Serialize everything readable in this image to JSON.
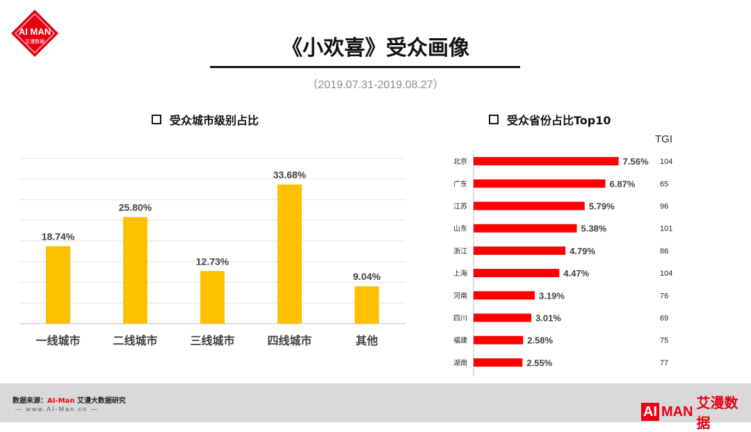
{
  "header": {
    "logo_text": "AI MAN",
    "logo_sub": "艾漫数据",
    "title": "《小欢喜》受众画像",
    "date_range": "（2019.07.31-2019.08.27）"
  },
  "colors": {
    "bar_left": "#ffc000",
    "bar_right": "#ff0000",
    "brand": "#e60012"
  },
  "chart_data": [
    {
      "type": "bar",
      "title": "受众城市级别占比",
      "categories": [
        "一线城市",
        "二线城市",
        "三线城市",
        "四线城市",
        "其他"
      ],
      "values": [
        18.74,
        25.8,
        12.73,
        33.68,
        9.04
      ],
      "value_labels": [
        "18.74%",
        "25.80%",
        "12.73%",
        "33.68%",
        "9.04%"
      ],
      "ylim": [
        0,
        40
      ],
      "grid": true,
      "unit": "%"
    },
    {
      "type": "bar",
      "orientation": "horizontal",
      "title": "受众省份占比Top10",
      "categories": [
        "北京",
        "广东",
        "江苏",
        "山东",
        "浙江",
        "上海",
        "河南",
        "四川",
        "福建",
        "湖南"
      ],
      "values": [
        7.56,
        6.87,
        5.79,
        5.38,
        4.79,
        4.47,
        3.19,
        3.01,
        2.58,
        2.55
      ],
      "value_labels": [
        "7.56%",
        "6.87%",
        "5.79%",
        "5.38%",
        "4.79%",
        "4.47%",
        "3.19%",
        "3.01%",
        "2.58%",
        "2.55%"
      ],
      "tgi_header": "TGI",
      "tgi": [
        "104",
        "65",
        "96",
        "101",
        "86",
        "104",
        "76",
        "69",
        "75",
        "77"
      ],
      "unit": "%"
    }
  ],
  "footer": {
    "source_prefix": "数据来源：",
    "source_brand": "AI-Man",
    "source_suffix": " 艾漫大数据研究",
    "url": "— www.AI-Man.cn —",
    "logo_ai": "AI",
    "logo_man": "MAN",
    "logo_cn": "艾漫数据"
  }
}
